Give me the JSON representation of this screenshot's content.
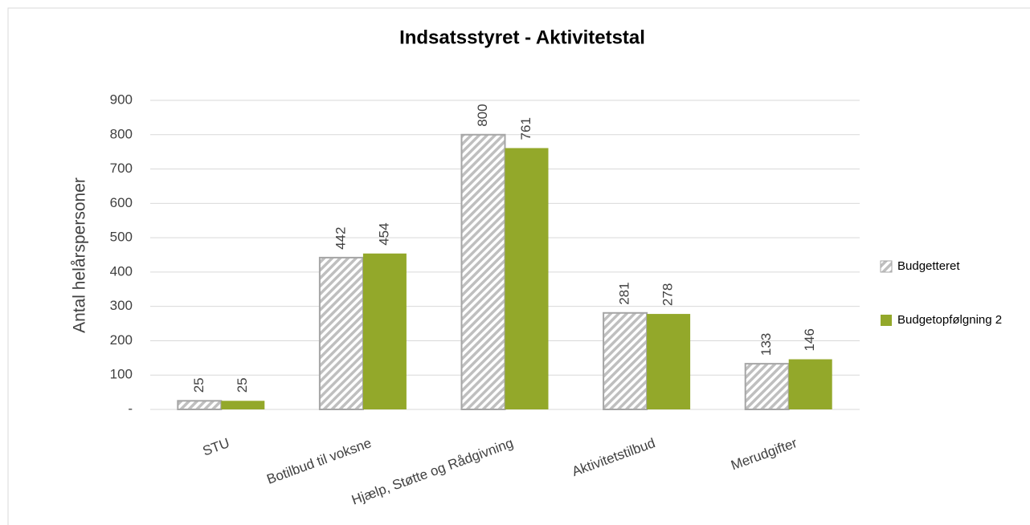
{
  "chart_data": {
    "type": "bar",
    "title": "Indsatsstyret - Aktivitetstal",
    "y_label": "Antal helårspersoner",
    "categories": [
      "STU",
      "Botilbud til voksne",
      "Hjælp, Støtte og Rådgivning",
      "Aktivitetstilbud",
      "Merudgifter"
    ],
    "series": [
      {
        "name": "Budgetteret",
        "color": "#a6a6a6",
        "hatch": true,
        "values": [
          25,
          442,
          800,
          281,
          133
        ]
      },
      {
        "name": "Budgetopfølgning 2",
        "color": "#93a82a",
        "hatch": false,
        "values": [
          25,
          454,
          761,
          278,
          146
        ]
      }
    ],
    "ylim": [
      0,
      900
    ],
    "yticks": [
      {
        "value": 0,
        "label": "-"
      },
      100,
      200,
      300,
      400,
      500,
      600,
      700,
      800,
      900
    ],
    "grid": true,
    "legend": "right"
  }
}
